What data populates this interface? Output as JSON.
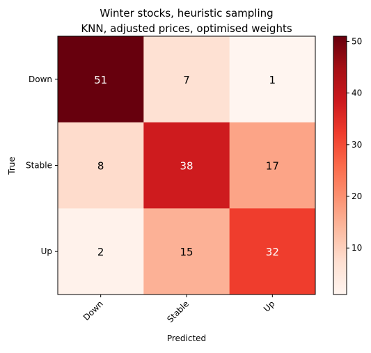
{
  "chart_data": {
    "type": "heatmap",
    "title": "Winter stocks, heuristic sampling",
    "subtitle": "KNN, adjusted prices, optimised weights",
    "xlabel": "Predicted",
    "ylabel": "True",
    "x_categories": [
      "Down",
      "Stable",
      "Up"
    ],
    "y_categories": [
      "Down",
      "Stable",
      "Up"
    ],
    "values": [
      [
        51,
        7,
        1
      ],
      [
        8,
        38,
        17
      ],
      [
        2,
        15,
        32
      ]
    ],
    "colormap": "Reds",
    "value_range": [
      1,
      51
    ],
    "colorbar_ticks": [
      10,
      20,
      30,
      40,
      50
    ],
    "colors": {
      "low": "#fff5f0",
      "high": "#67000d",
      "text_dark": "#000000",
      "text_light": "#ffffff"
    }
  }
}
